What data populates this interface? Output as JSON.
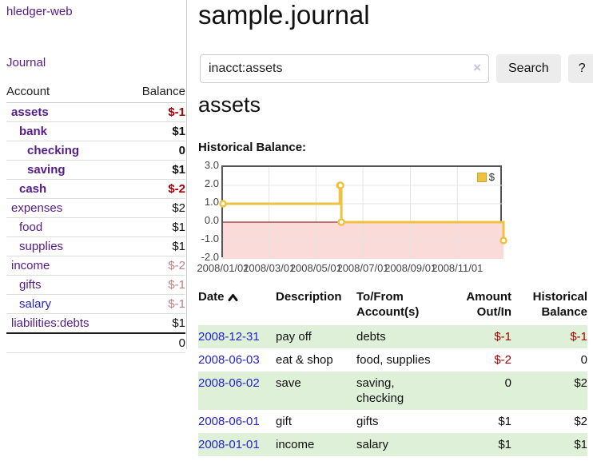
{
  "app": {
    "title": "hledger-web"
  },
  "sidebar": {
    "journal_link": "Journal",
    "accounts": {
      "header_account": "Account",
      "header_balance": "Balance",
      "rows": [
        {
          "name": "assets",
          "balance": "$-1",
          "depth": 1,
          "bold": true,
          "balance_color": "negative",
          "link_color": "purple"
        },
        {
          "name": "bank",
          "balance": "$1",
          "depth": 2,
          "bold": true,
          "balance_color": "normal",
          "link_color": "purple"
        },
        {
          "name": "checking",
          "balance": "0",
          "depth": 3,
          "bold": true,
          "balance_color": "normal",
          "link_color": "purple"
        },
        {
          "name": "saving",
          "balance": "$1",
          "depth": 3,
          "bold": true,
          "balance_color": "normal",
          "link_color": "purple"
        },
        {
          "name": "cash",
          "balance": "$-2",
          "depth": 2,
          "bold": true,
          "balance_color": "negative",
          "link_color": "purple"
        },
        {
          "name": "expenses",
          "balance": "$2",
          "depth": 1,
          "bold": false,
          "balance_color": "normal",
          "link_color": "purple"
        },
        {
          "name": "food",
          "balance": "$1",
          "depth": 2,
          "bold": false,
          "balance_color": "normal",
          "link_color": "purple"
        },
        {
          "name": "supplies",
          "balance": "$1",
          "depth": 2,
          "bold": false,
          "balance_color": "normal",
          "link_color": "purple"
        },
        {
          "name": "income",
          "balance": "$-2",
          "depth": 1,
          "bold": false,
          "balance_color": "faded",
          "link_color": "purple"
        },
        {
          "name": "gifts",
          "balance": "$-1",
          "depth": 2,
          "bold": false,
          "balance_color": "faded",
          "link_color": "purple"
        },
        {
          "name": "salary",
          "balance": "$-1",
          "depth": 2,
          "bold": false,
          "balance_color": "faded",
          "link_color": "blue"
        },
        {
          "name": "liabilities:debts",
          "balance": "$1",
          "depth": 1,
          "bold": false,
          "balance_color": "normal",
          "link_color": "purple"
        }
      ],
      "total": "0"
    }
  },
  "main": {
    "title": "sample.journal",
    "search": {
      "value": "inacct:assets",
      "clear_icon": "×",
      "search_button": "Search",
      "help_button": "?"
    },
    "account_heading": "assets",
    "section_label": "Historical Balance:"
  },
  "chart_data": {
    "type": "line",
    "step": true,
    "title": "Historical Balance",
    "series": [
      {
        "name": "$",
        "color": "#edc240",
        "points": [
          [
            "2008-01-01",
            1
          ],
          [
            "2008-06-01",
            2
          ],
          [
            "2008-06-02",
            2
          ],
          [
            "2008-06-03",
            0
          ],
          [
            "2008-12-31",
            -1
          ]
        ]
      }
    ],
    "legend": [
      {
        "label": "$",
        "color": "#edc240"
      }
    ],
    "x_range": [
      "2008-01-01",
      "2008-12-31"
    ],
    "x_ticks": [
      "2008/01/01",
      "2008/03/01",
      "2008/05/01",
      "2008/07/01",
      "2008/09/01",
      "2008/11/01"
    ],
    "y_ticks": [
      3.0,
      2.0,
      1.0,
      0.0,
      -1.0,
      -2.0
    ],
    "ylim": [
      -2,
      3
    ],
    "grid": true,
    "legend_position": "top-right",
    "colors": {
      "negative_region": "#fbdada",
      "zero_line": "#8b0000",
      "grid": "#e3e3e3",
      "border": "#545454"
    }
  },
  "register": {
    "headers": {
      "date": "Date",
      "description": "Description",
      "accounts": "To/From Account(s)",
      "amount": "Amount Out/In",
      "balance": "Historical Balance"
    },
    "rows": [
      {
        "date": "2008-12-31",
        "description": "pay off",
        "accounts": "debts",
        "amount": "$-1",
        "balance": "$-1",
        "amount_neg": true,
        "balance_neg": true
      },
      {
        "date": "2008-06-03",
        "description": "eat & shop",
        "accounts": "food, supplies",
        "amount": "$-2",
        "balance": "0",
        "amount_neg": true,
        "balance_neg": false
      },
      {
        "date": "2008-06-02",
        "description": "save",
        "accounts": "saving, checking",
        "amount": "0",
        "balance": "$2",
        "amount_neg": false,
        "balance_neg": false
      },
      {
        "date": "2008-06-01",
        "description": "gift",
        "accounts": "gifts",
        "amount": "$1",
        "balance": "$2",
        "amount_neg": false,
        "balance_neg": false
      },
      {
        "date": "2008-01-01",
        "description": "income",
        "accounts": "salary",
        "amount": "$1",
        "balance": "$1",
        "amount_neg": false,
        "balance_neg": false
      }
    ]
  }
}
